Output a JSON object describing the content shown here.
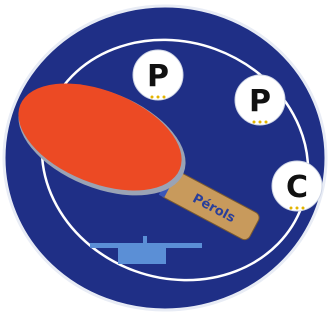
{
  "logo": {
    "letters": [
      "P",
      "P",
      "C"
    ],
    "handle_text": "Pérols"
  }
}
